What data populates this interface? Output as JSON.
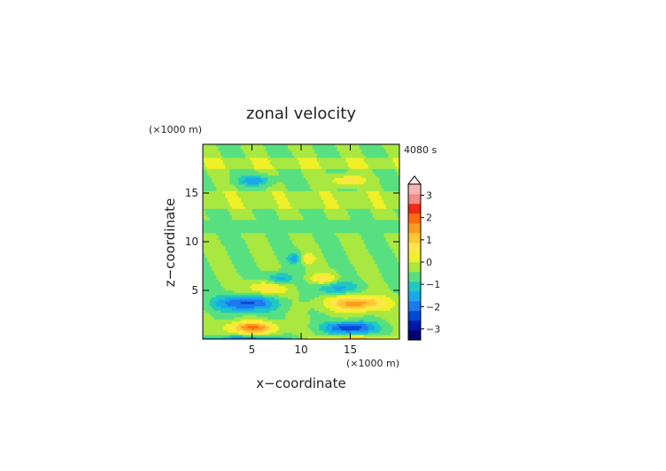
{
  "chart_data": {
    "type": "heatmap",
    "title": "zonal velocity",
    "time_label": "4080 s",
    "xlabel": "x−coordinate",
    "ylabel": "z−coordinate",
    "x_unit_label": "(×1000 m)",
    "y_unit_label": "(×1000 m)",
    "xlim": [
      0,
      20
    ],
    "ylim": [
      0,
      20
    ],
    "x_ticks": [
      {
        "value": 5,
        "label": "5"
      },
      {
        "value": 10,
        "label": "10"
      },
      {
        "value": 15,
        "label": "15"
      }
    ],
    "y_ticks": [
      {
        "value": 5,
        "label": "5"
      },
      {
        "value": 10,
        "label": "10"
      },
      {
        "value": 15,
        "label": "15"
      }
    ],
    "colorbar": {
      "min": -3.5,
      "max": 3.5,
      "step": 0.5,
      "extend": "max",
      "labels": [
        {
          "value": 3,
          "label": "3"
        },
        {
          "value": 2,
          "label": "2"
        },
        {
          "value": 1,
          "label": "1"
        },
        {
          "value": 0,
          "label": "0"
        },
        {
          "value": -1,
          "label": "−1"
        },
        {
          "value": -2,
          "label": "−2"
        },
        {
          "value": -3,
          "label": "−3"
        }
      ],
      "colors": [
        "#000070",
        "#0018a8",
        "#0046d8",
        "#1e78f0",
        "#19a8e8",
        "#20c8c0",
        "#58e080",
        "#a8e840",
        "#f0f028",
        "#ffe64a",
        "#ffc832",
        "#ff9b1e",
        "#ff6a10",
        "#f02814",
        "#f08c8c",
        "#f8b4b4"
      ],
      "top_triangle_color": "#ffe6e6"
    },
    "field_features": [
      {
        "name": "base-westerly",
        "x": 5,
        "z": 1.2,
        "sx": 2.4,
        "sz": 0.6,
        "value": 2.6
      },
      {
        "name": "base-easterly",
        "x": 15,
        "z": 1.2,
        "sx": 2.4,
        "sz": 0.6,
        "value": -2.6
      },
      {
        "name": "surface-strip-left",
        "x": 5,
        "z": 0.15,
        "sx": 4.5,
        "sz": 0.2,
        "value": -1.8
      },
      {
        "name": "surface-strip-right",
        "x": 15,
        "z": 0.15,
        "sx": 4.5,
        "sz": 0.2,
        "value": 1.8
      },
      {
        "name": "lower-easterly",
        "x": 4.3,
        "z": 3.7,
        "sx": 3.0,
        "sz": 0.8,
        "value": -2.2
      },
      {
        "name": "lower-westerly",
        "x": 15.7,
        "z": 3.7,
        "sx": 3.0,
        "sz": 0.8,
        "value": 2.3
      },
      {
        "name": "tilted-west-upper",
        "x": 7.8,
        "z": 6.2,
        "sx": 1.3,
        "sz": 0.6,
        "value": -1.4
      },
      {
        "name": "tilted-east-upper",
        "x": 12.2,
        "z": 6.2,
        "sx": 1.3,
        "sz": 0.6,
        "value": 1.4
      },
      {
        "name": "tilted-west-pos",
        "x": 6.5,
        "z": 5.3,
        "sx": 2.0,
        "sz": 0.7,
        "value": 1.3
      },
      {
        "name": "tilted-east-neg",
        "x": 13.5,
        "z": 5.3,
        "sx": 2.0,
        "sz": 0.7,
        "value": -1.3
      },
      {
        "name": "apex-neg",
        "x": 9.4,
        "z": 8.3,
        "sx": 0.8,
        "sz": 0.5,
        "value": -1.3
      },
      {
        "name": "apex-pos",
        "x": 10.6,
        "z": 8.3,
        "sx": 0.8,
        "sz": 0.5,
        "value": 1.3
      },
      {
        "name": "upper-neg",
        "x": 5.2,
        "z": 16.3,
        "sx": 1.6,
        "sz": 0.5,
        "value": -1.4
      },
      {
        "name": "upper-pos",
        "x": 14.8,
        "z": 16.3,
        "sx": 1.6,
        "sz": 0.5,
        "value": 1.4
      }
    ]
  }
}
